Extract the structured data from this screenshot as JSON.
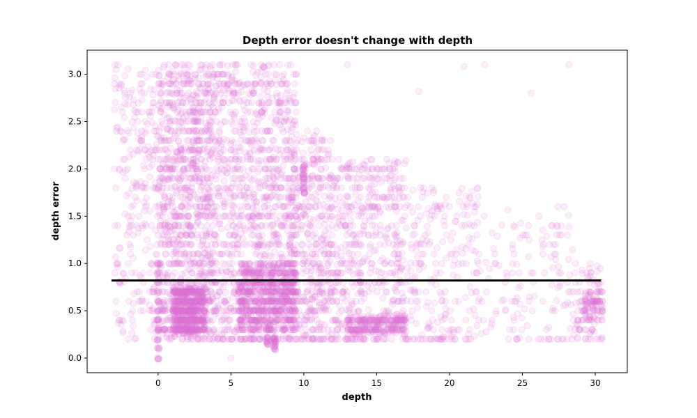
{
  "chart_data": {
    "type": "scatter",
    "title": "Depth error doesn't change with depth",
    "xlabel": "depth",
    "ylabel": "depth error",
    "xlim": [
      -4.87,
      32.2
    ],
    "ylim": [
      -0.155,
      3.255
    ],
    "xticks": [
      0,
      5,
      10,
      15,
      20,
      25,
      30
    ],
    "yticks": [
      0.0,
      0.5,
      1.0,
      1.5,
      2.0,
      2.5,
      3.0
    ],
    "grid": false,
    "point_color": "#da70d6",
    "point_alpha": 0.12,
    "line_color": "#000000",
    "series": [
      {
        "kind": "scatter",
        "clusters": [
          {
            "x": [
              -3.0,
              0.0
            ],
            "y": [
              0.2,
              3.1
            ],
            "n": 260
          },
          {
            "x": [
              0.0,
              4.0
            ],
            "y": [
              0.2,
              3.1
            ],
            "n": 1100
          },
          {
            "x": [
              1.0,
              3.2
            ],
            "y": [
              0.25,
              0.75
            ],
            "n": 650
          },
          {
            "x": [
              4.0,
              9.5
            ],
            "y": [
              0.2,
              3.1
            ],
            "n": 1000
          },
          {
            "x": [
              5.5,
              9.5
            ],
            "y": [
              0.3,
              1.0
            ],
            "n": 750
          },
          {
            "x": [
              9.0,
              12.0
            ],
            "y": [
              0.2,
              2.4
            ],
            "n": 450
          },
          {
            "x": [
              12.0,
              17.0
            ],
            "y": [
              0.2,
              2.1
            ],
            "n": 500
          },
          {
            "x": [
              13.0,
              17.0
            ],
            "y": [
              0.25,
              0.45
            ],
            "n": 250
          },
          {
            "x": [
              17.0,
              22.0
            ],
            "y": [
              0.2,
              1.8
            ],
            "n": 220
          },
          {
            "x": [
              22.0,
              28.5
            ],
            "y": [
              0.2,
              1.6
            ],
            "n": 130
          },
          {
            "x": [
              28.5,
              30.5
            ],
            "y": [
              0.2,
              1.0
            ],
            "n": 90
          },
          {
            "x": [
              29.0,
              30.5
            ],
            "y": [
              0.4,
              0.7
            ],
            "n": 80
          }
        ],
        "columns": [
          {
            "x": 0.0,
            "y": [
              0.0,
              0.1,
              0.2,
              0.3,
              0.4,
              0.5,
              0.6,
              0.7,
              0.8,
              0.9,
              1.0
            ]
          },
          {
            "x": 10.0,
            "y": [
              1.75,
              1.8,
              1.85,
              1.9,
              1.95,
              2.0,
              2.03
            ]
          },
          {
            "x": 8.0,
            "y": [
              0.1,
              0.13,
              0.16,
              0.19,
              0.22
            ]
          },
          {
            "x": 7.5,
            "y": [
              0.15,
              0.18,
              0.21
            ]
          }
        ],
        "rows": [
          {
            "y": 0.2,
            "x": [
              2.5,
              21.5
            ],
            "n": 120
          },
          {
            "y": 0.2,
            "x": [
              24.0,
              30.5
            ],
            "n": 22
          }
        ],
        "points": [
          {
            "x": 5.0,
            "y": 0.0
          },
          {
            "x": 28.2,
            "y": 3.1
          },
          {
            "x": 25.6,
            "y": 2.8
          },
          {
            "x": 22.4,
            "y": 3.1
          },
          {
            "x": 21.0,
            "y": 3.08
          },
          {
            "x": 13.0,
            "y": 3.1
          },
          {
            "x": 17.9,
            "y": 2.82
          }
        ]
      },
      {
        "kind": "line",
        "x": [
          -3.2,
          30.4
        ],
        "y": [
          0.82,
          0.82
        ]
      }
    ]
  }
}
